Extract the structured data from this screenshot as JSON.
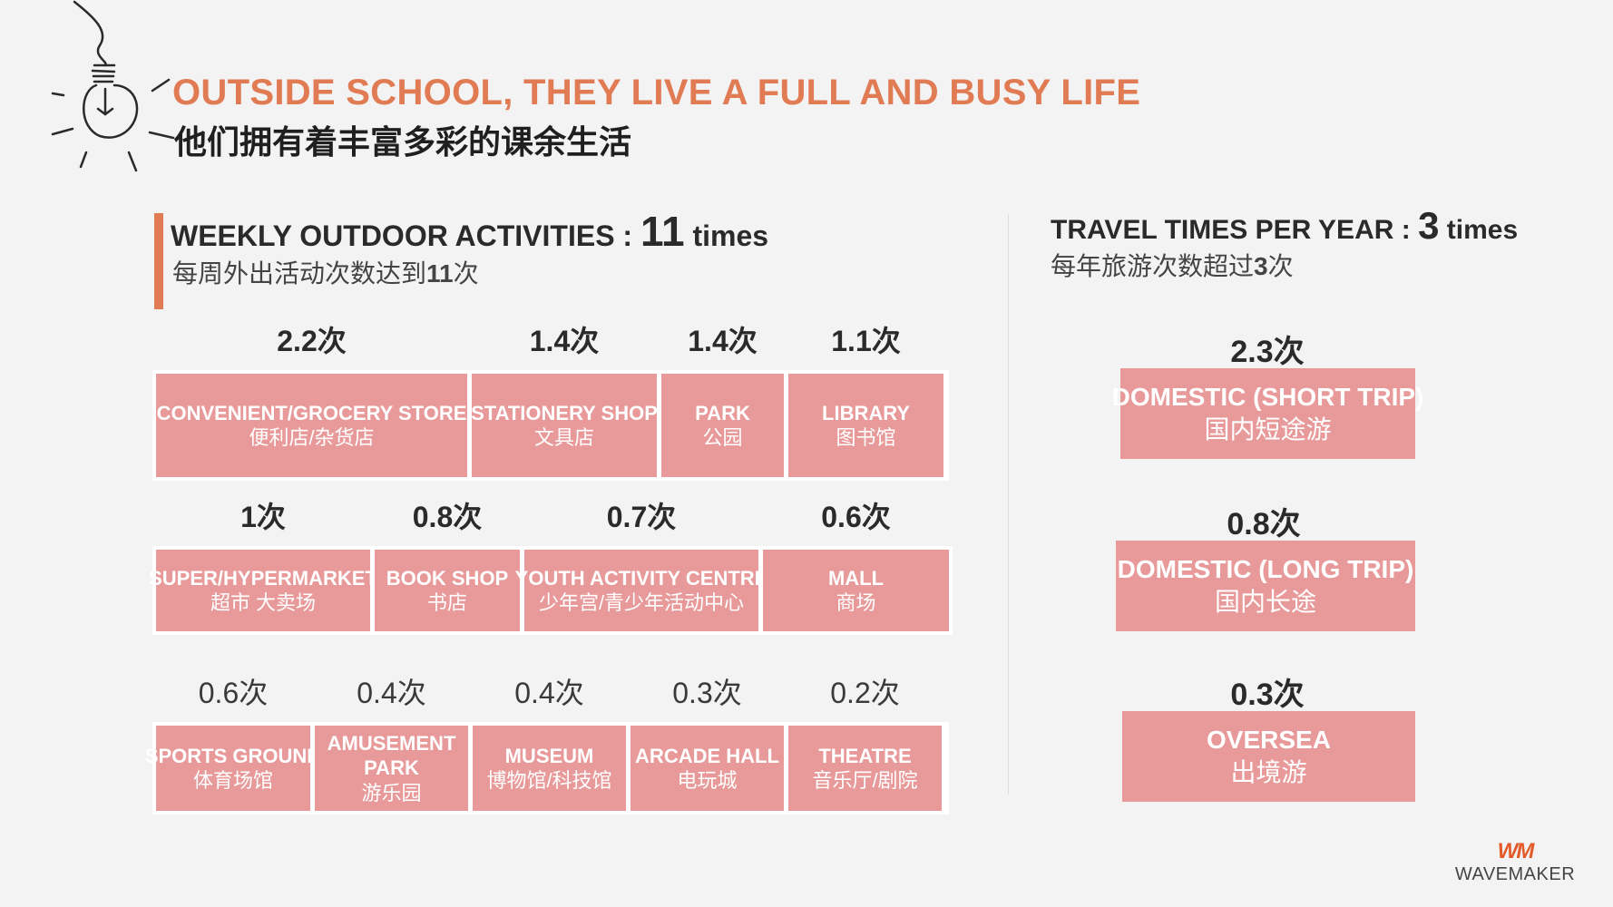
{
  "header": {
    "title_en": "OUTSIDE SCHOOL, THEY LIVE A FULL AND BUSY LIFE",
    "title_cn": "他们拥有着丰富多彩的课余生活"
  },
  "weekly": {
    "label_en": "WEEKLY OUTDOOR ACTIVITIES : ",
    "value": "11",
    "unit": " times",
    "label_cn_pre": "每周外出活动次数达到",
    "label_cn_value": "11",
    "label_cn_post": "次"
  },
  "travel": {
    "label_en": "TRAVEL TIMES PER YEAR : ",
    "value": "3",
    "unit": " times",
    "label_cn_pre": "每年旅游次数超过",
    "label_cn_value": "3",
    "label_cn_post": "次"
  },
  "activities": {
    "row1": [
      {
        "value": "2.2次",
        "en": "CONVENIENT/GROCERY STORE",
        "cn": "便利店/杂货店"
      },
      {
        "value": "1.4次",
        "en": "STATIONERY SHOP",
        "cn": "文具店"
      },
      {
        "value": "1.4次",
        "en": "PARK",
        "cn": "公园"
      },
      {
        "value": "1.1次",
        "en": "LIBRARY",
        "cn": "图书馆"
      }
    ],
    "row2": [
      {
        "value": "1次",
        "en": "SUPER/HYPERMARKET",
        "cn": "超市 大卖场"
      },
      {
        "value": "0.8次",
        "en": "BOOK SHOP",
        "cn": "书店"
      },
      {
        "value": "0.7次",
        "en": "YOUTH ACTIVITY CENTRE",
        "cn": "少年宫/青少年活动中心"
      },
      {
        "value": "0.6次",
        "en": "MALL",
        "cn": "商场"
      }
    ],
    "row3": [
      {
        "value": "0.6次",
        "en": "SPORTS GROUND",
        "cn": "体育场馆"
      },
      {
        "value": "0.4次",
        "en": "AMUSEMENT PARK",
        "en1": "AMUSEMENT",
        "en2": "PARK",
        "cn": "游乐园"
      },
      {
        "value": "0.4次",
        "en": "MUSEUM",
        "cn": "博物馆/科技馆"
      },
      {
        "value": "0.3次",
        "en": "ARCADE HALL",
        "cn": "电玩城"
      },
      {
        "value": "0.2次",
        "en": "THEATRE",
        "cn": "音乐厅/剧院"
      }
    ]
  },
  "trips": [
    {
      "value": "2.3次",
      "en": "DOMESTIC (SHORT TRIP)",
      "cn": "国内短途游"
    },
    {
      "value": "0.8次",
      "en": "DOMESTIC (LONG TRIP)",
      "cn": "国内长途"
    },
    {
      "value": "0.3次",
      "en": "OVERSEA",
      "cn": "出境游"
    }
  ],
  "logo": {
    "mark": "WM",
    "text": "WAVEMAKER"
  },
  "colors": {
    "accent": "#e07b54",
    "tile": "#e89a9a"
  }
}
